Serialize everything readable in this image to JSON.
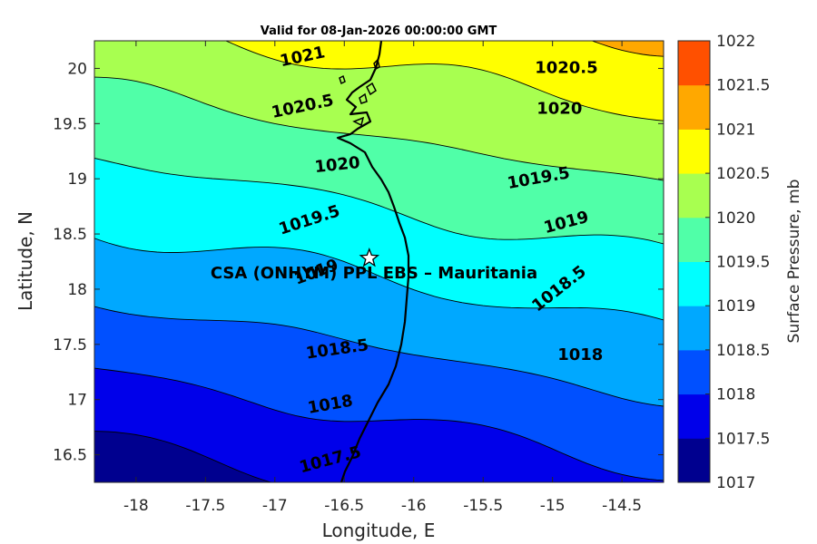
{
  "title": "Valid for 08-Jan-2026 00:00:00 GMT",
  "xlabel": "Longitude, E",
  "ylabel": "Latitude, N",
  "colorbar_label": "Surface Pressure, mb",
  "site_label": "CSA (ONHYM) PPL EBS  – Mauritania",
  "site_icon": "star-icon",
  "map_data": {
    "type": "filled-contour",
    "lon_range": [
      -18.3,
      -14.2
    ],
    "lat_range": [
      16.25,
      20.25
    ],
    "x_ticks": [
      -18,
      -17.5,
      -17,
      -16.5,
      -16,
      -15.5,
      -15,
      -14.5
    ],
    "y_ticks": [
      16.5,
      17,
      17.5,
      18,
      18.5,
      19,
      19.5,
      20
    ],
    "x_tick_labels": [
      "-18",
      "-17.5",
      "-17",
      "-16.5",
      "-16",
      "-15.5",
      "-15",
      "-14.5"
    ],
    "y_tick_labels": [
      "16.5",
      "17",
      "17.5",
      "18",
      "18.5",
      "19",
      "19.5",
      "20"
    ],
    "levels": [
      1017,
      1017.5,
      1018,
      1018.5,
      1019,
      1019.5,
      1020,
      1020.5,
      1021,
      1021.5,
      1022
    ],
    "level_colors": [
      "#00008f",
      "#0000ea",
      "#0050ff",
      "#00a8ff",
      "#00ffff",
      "#50ffa8",
      "#a8ff50",
      "#ffff00",
      "#ffa800",
      "#ff5000",
      "#ff0000"
    ],
    "colorbar_tick_labels": [
      "1017",
      "1017.5",
      "1018",
      "1018.5",
      "1019",
      "1019.5",
      "1020",
      "1020.5",
      "1021",
      "1021.5",
      "1022"
    ],
    "contour_labels": [
      {
        "text": "1021",
        "lon": -16.8,
        "lat": 20.1,
        "angle": -12
      },
      {
        "text": "1020.5",
        "lon": -14.9,
        "lat": 20.0,
        "angle": 0
      },
      {
        "text": "1020.5",
        "lon": -16.8,
        "lat": 19.65,
        "angle": -12
      },
      {
        "text": "1020",
        "lon": -14.95,
        "lat": 19.63,
        "angle": 0
      },
      {
        "text": "1020",
        "lon": -16.55,
        "lat": 19.12,
        "angle": -6
      },
      {
        "text": "1019.5",
        "lon": -15.1,
        "lat": 19.0,
        "angle": -10
      },
      {
        "text": "1019.5",
        "lon": -16.75,
        "lat": 18.62,
        "angle": -18
      },
      {
        "text": "1019",
        "lon": -14.9,
        "lat": 18.6,
        "angle": -15
      },
      {
        "text": "1019",
        "lon": -16.7,
        "lat": 18.15,
        "angle": -20
      },
      {
        "text": "1018.5",
        "lon": -14.95,
        "lat": 18.0,
        "angle": -38
      },
      {
        "text": "1018.5",
        "lon": -16.55,
        "lat": 17.45,
        "angle": -8
      },
      {
        "text": "1018",
        "lon": -14.8,
        "lat": 17.4,
        "angle": 0
      },
      {
        "text": "1018",
        "lon": -16.6,
        "lat": 16.95,
        "angle": -10
      },
      {
        "text": "1017.5",
        "lon": -16.6,
        "lat": 16.45,
        "angle": -15
      }
    ],
    "site": {
      "lon": -16.32,
      "lat": 18.28
    }
  }
}
